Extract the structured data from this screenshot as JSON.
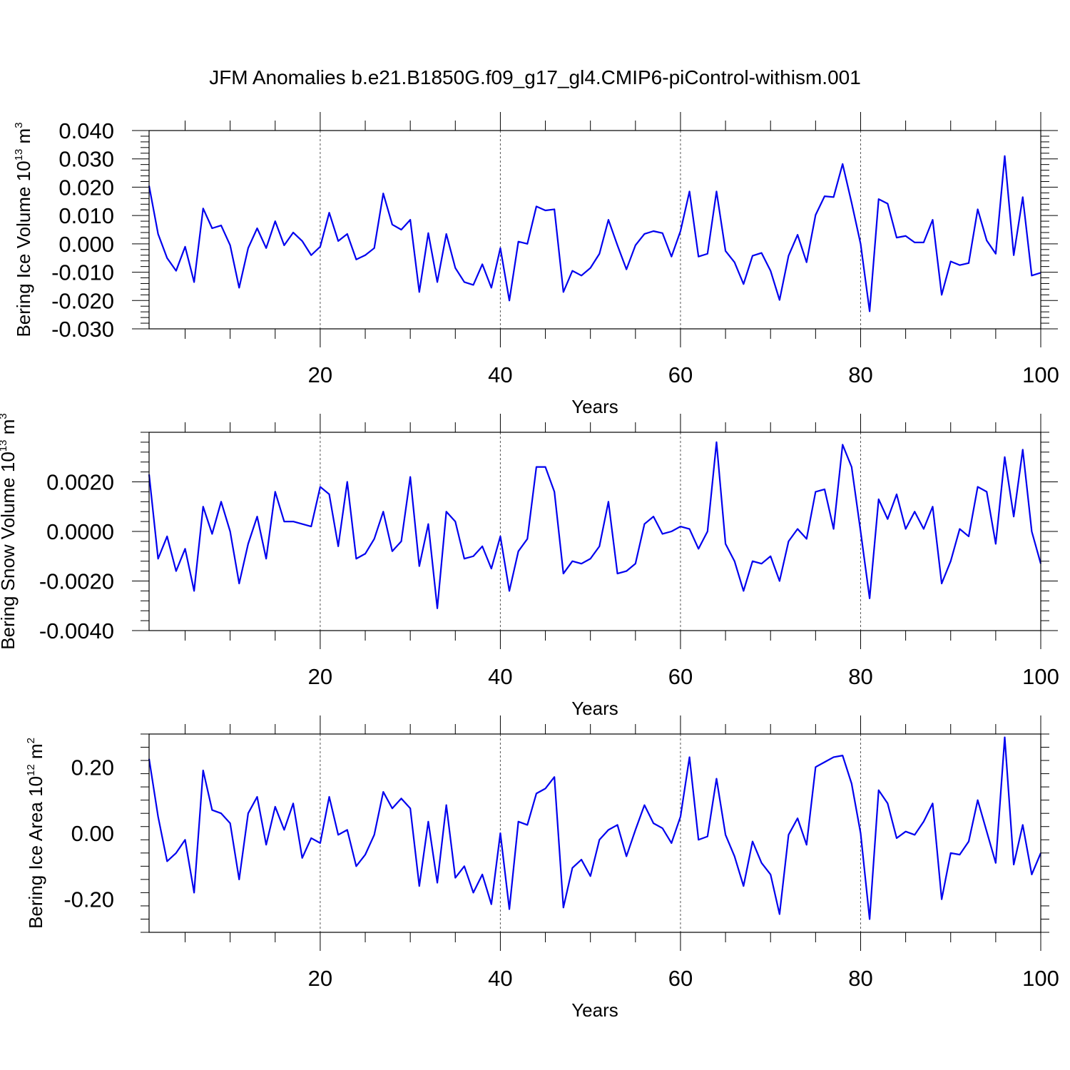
{
  "figure_title": "JFM Anomalies b.e21.B1850G.f09_g17_gl4.CMIP6-piControl-withism.001",
  "colors": {
    "line": "#0000ee",
    "grid": "#555555",
    "frame": "#000000"
  },
  "chart_data": [
    {
      "type": "line",
      "title": "",
      "xlabel": "Years",
      "ylabel": "Bering Ice Volume 10",
      "ylabel_sup": "13",
      "ylabel_unit": "m",
      "ylabel_unit_sup": "3",
      "xlim": [
        1,
        100
      ],
      "ylim": [
        -0.03,
        0.04
      ],
      "xticks": [
        20,
        40,
        60,
        80,
        100
      ],
      "xtick_labels": [
        "20",
        "40",
        "60",
        "80",
        "100"
      ],
      "yticks": [
        -0.03,
        -0.02,
        -0.01,
        0.0,
        0.01,
        0.02,
        0.03,
        0.04
      ],
      "ytick_labels": [
        "-0.030",
        "-0.020",
        "-0.010",
        "0.000",
        "0.010",
        "0.020",
        "0.030",
        "0.040"
      ],
      "grid_x": [
        20,
        40,
        60,
        80
      ],
      "series": [
        {
          "x_start": 1,
          "values": [
            0.0205,
            0.0035,
            -0.005,
            -0.0095,
            -0.001,
            -0.0135,
            0.0125,
            0.0055,
            0.0065,
            -0.0005,
            -0.0155,
            -0.0015,
            0.0055,
            -0.0015,
            0.008,
            -0.0005,
            0.004,
            0.001,
            -0.004,
            -0.001,
            0.011,
            0.001,
            0.0035,
            -0.0055,
            -0.004,
            -0.0015,
            0.0178,
            0.0068,
            0.005,
            0.0085,
            -0.017,
            0.0038,
            -0.0135,
            0.0035,
            -0.0085,
            -0.0135,
            -0.0145,
            -0.0072,
            -0.0155,
            -0.0015,
            -0.02,
            0.0008,
            0.0,
            0.0132,
            0.0118,
            0.0122,
            -0.017,
            -0.0095,
            -0.0112,
            -0.0085,
            -0.0035,
            0.0085,
            -0.0005,
            -0.009,
            -0.0005,
            0.0035,
            0.0045,
            0.0038,
            -0.0045,
            0.0045,
            0.0185,
            -0.0045,
            -0.0035,
            0.0185,
            -0.0025,
            -0.0065,
            -0.0142,
            -0.0042,
            -0.0032,
            -0.0095,
            -0.0198,
            -0.0042,
            0.0032,
            -0.0065,
            0.0102,
            0.0168,
            0.0165,
            0.0282,
            0.0145,
            0.0,
            -0.0238,
            0.0158,
            0.0142,
            0.0022,
            0.0028,
            0.0005,
            0.0005,
            0.0085,
            -0.018,
            -0.0062,
            -0.0075,
            -0.0068,
            0.0122,
            0.0012,
            -0.0035,
            0.031,
            -0.004,
            0.0165,
            -0.0112,
            -0.0102
          ]
        }
      ]
    },
    {
      "type": "line",
      "title": "",
      "xlabel": "Years",
      "ylabel": "Bering Snow Volume 10",
      "ylabel_sup": "13",
      "ylabel_unit": "m",
      "ylabel_unit_sup": "3",
      "xlim": [
        1,
        100
      ],
      "ylim": [
        -0.004,
        0.004
      ],
      "xticks": [
        20,
        40,
        60,
        80,
        100
      ],
      "xtick_labels": [
        "20",
        "40",
        "60",
        "80",
        "100"
      ],
      "yticks": [
        -0.004,
        -0.002,
        0.0,
        0.002
      ],
      "ytick_labels": [
        "-0.0040",
        "-0.0020",
        "0.0000",
        "0.0020"
      ],
      "grid_x": [
        20,
        40,
        60,
        80
      ],
      "series": [
        {
          "x_start": 1,
          "values": [
            0.0023,
            -0.0011,
            -0.0002,
            -0.0016,
            -0.0007,
            -0.0024,
            0.001,
            -0.0001,
            0.0012,
            0.0,
            -0.0021,
            -0.0005,
            0.0006,
            -0.0011,
            0.0016,
            0.0004,
            0.0004,
            0.0003,
            0.0002,
            0.0018,
            0.0015,
            -0.0006,
            0.002,
            -0.0011,
            -0.0009,
            -0.0003,
            0.0008,
            -0.0008,
            -0.0004,
            0.0022,
            -0.0014,
            0.0003,
            -0.0031,
            0.0008,
            0.0004,
            -0.0011,
            -0.001,
            -0.0006,
            -0.0015,
            -0.0002,
            -0.0024,
            -0.0008,
            -0.0003,
            0.0026,
            0.0026,
            0.0016,
            -0.0017,
            -0.0012,
            -0.0013,
            -0.0011,
            -0.0006,
            0.0012,
            -0.0017,
            -0.0016,
            -0.0013,
            0.0003,
            0.0006,
            -0.0001,
            0.0,
            0.0002,
            0.0001,
            -0.0007,
            0.0,
            0.0036,
            -0.0005,
            -0.0012,
            -0.0024,
            -0.0012,
            -0.0013,
            -0.001,
            -0.002,
            -0.0004,
            0.0001,
            -0.0003,
            0.0016,
            0.0017,
            0.0001,
            0.0035,
            0.0026,
            0.0,
            -0.0027,
            0.0013,
            0.0005,
            0.0015,
            0.0001,
            0.0008,
            0.0001,
            0.001,
            -0.0021,
            -0.0012,
            0.0001,
            -0.0002,
            0.0018,
            0.0016,
            -0.0005,
            0.003,
            0.0006,
            0.0033,
            0.0,
            -0.0013
          ]
        }
      ]
    },
    {
      "type": "line",
      "title": "",
      "xlabel": "Years",
      "ylabel": "Bering Ice Area 10",
      "ylabel_sup": "12",
      "ylabel_unit": "m",
      "ylabel_unit_sup": "2",
      "xlim": [
        1,
        100
      ],
      "ylim": [
        -0.3,
        0.3
      ],
      "xticks": [
        20,
        40,
        60,
        80,
        100
      ],
      "xtick_labels": [
        "20",
        "40",
        "60",
        "80",
        "100"
      ],
      "yticks": [
        -0.2,
        0.0,
        0.2
      ],
      "ytick_labels": [
        "-0.20",
        "0.00",
        "0.20"
      ],
      "grid_x": [
        20,
        40,
        60,
        80
      ],
      "series": [
        {
          "x_start": 1,
          "values": [
            0.225,
            0.05,
            -0.085,
            -0.06,
            -0.02,
            -0.18,
            0.19,
            0.07,
            0.06,
            0.03,
            -0.14,
            0.06,
            0.11,
            -0.035,
            0.08,
            0.01,
            0.09,
            -0.075,
            -0.015,
            -0.03,
            0.11,
            -0.005,
            0.01,
            -0.1,
            -0.065,
            -0.005,
            0.125,
            0.075,
            0.105,
            0.075,
            -0.16,
            0.035,
            -0.15,
            0.085,
            -0.135,
            -0.1,
            -0.18,
            -0.125,
            -0.215,
            0.0,
            -0.23,
            0.035,
            0.025,
            0.12,
            0.135,
            0.17,
            -0.225,
            -0.105,
            -0.08,
            -0.13,
            -0.02,
            0.01,
            0.025,
            -0.07,
            0.01,
            0.085,
            0.03,
            0.015,
            -0.03,
            0.05,
            0.23,
            -0.02,
            -0.01,
            0.165,
            -0.005,
            -0.07,
            -0.16,
            -0.025,
            -0.09,
            -0.125,
            -0.245,
            -0.005,
            0.045,
            -0.035,
            0.2,
            0.215,
            0.23,
            0.235,
            0.15,
            0.0,
            -0.26,
            0.13,
            0.09,
            -0.015,
            0.005,
            -0.005,
            0.035,
            0.09,
            -0.2,
            -0.06,
            -0.065,
            -0.025,
            0.1,
            0.005,
            -0.09,
            0.29,
            -0.095,
            0.025,
            -0.125,
            -0.06
          ]
        }
      ]
    }
  ]
}
